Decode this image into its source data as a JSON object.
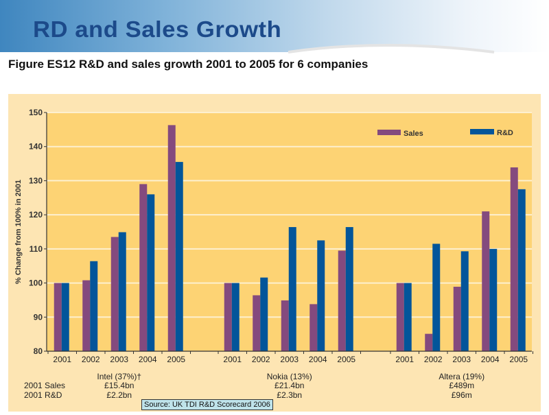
{
  "slide": {
    "title": "RD and Sales Growth",
    "figure_caption": "Figure ES12 R&D and sales growth 2001 to 2005 for 6 companies",
    "source": "Source: UK TDI R&D Scorecard 2006"
  },
  "colors": {
    "sales": "#844a7e",
    "rd": "#03559a",
    "plot_bg": "#fdd374",
    "outer_bg": "#fde5b3",
    "title": "#1c4a8a"
  },
  "chart_data": {
    "type": "bar",
    "title": "R&D and sales growth 2001 to 2005 for 6 companies",
    "ylabel": "% Change from 100% in 2001",
    "xlabel": "",
    "ylim": [
      80,
      150
    ],
    "yticks": [
      80,
      90,
      100,
      110,
      120,
      130,
      140,
      150
    ],
    "grid": true,
    "legend_position": "top-right",
    "legend": [
      "Sales",
      "R&D"
    ],
    "row_labels": [
      "2001 Sales",
      "2001 R&D"
    ],
    "groups": [
      {
        "name": "Intel (37%)†",
        "sales_2001": "£15.4bn",
        "rd_2001": "£2.2bn",
        "categories": [
          "2001",
          "2002",
          "2003",
          "2004",
          "2005"
        ],
        "series": [
          {
            "name": "Sales",
            "values": [
              100,
              100.8,
              113.5,
              129,
              146.3
            ]
          },
          {
            "name": "R&D",
            "values": [
              100,
              106.4,
              114.9,
              126,
              135.5
            ]
          }
        ]
      },
      {
        "name": "Nokia (13%)",
        "sales_2001": "£21.4bn",
        "rd_2001": "£2.3bn",
        "categories": [
          "2001",
          "2002",
          "2003",
          "2004",
          "2005"
        ],
        "series": [
          {
            "name": "Sales",
            "values": [
              100,
              96.4,
              94.9,
              93.8,
              109.5
            ]
          },
          {
            "name": "R&D",
            "values": [
              100,
              101.6,
              116.4,
              112.5,
              116.4
            ]
          }
        ]
      },
      {
        "name": "Altera (19%)",
        "sales_2001": "£489m",
        "rd_2001": "£96m",
        "categories": [
          "2001",
          "2002",
          "2003",
          "2004",
          "2005"
        ],
        "series": [
          {
            "name": "Sales",
            "values": [
              100,
              85.1,
              98.9,
              121,
              133.9
            ]
          },
          {
            "name": "R&D",
            "values": [
              100,
              111.5,
              109.3,
              110,
              127.5
            ]
          }
        ]
      }
    ]
  }
}
